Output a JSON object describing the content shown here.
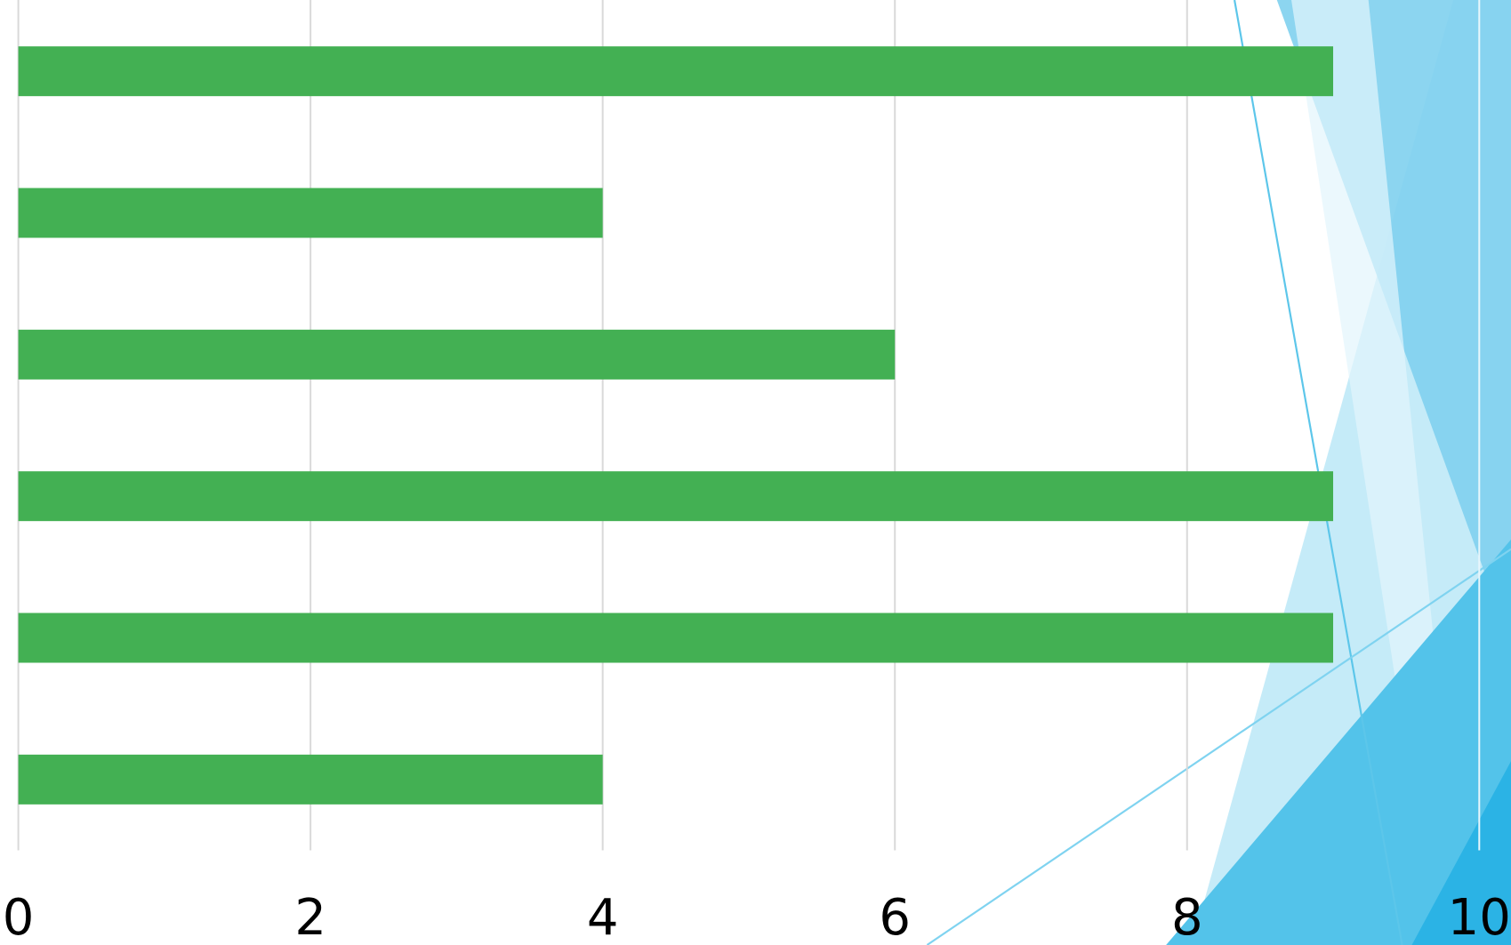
{
  "chart_data": {
    "type": "bar",
    "orientation": "horizontal",
    "categories": [
      null,
      null,
      null,
      null,
      null,
      null
    ],
    "values": [
      9,
      4,
      6,
      9,
      9,
      4
    ],
    "color": "#43b053",
    "xlim": [
      0,
      10
    ],
    "xticks": [
      0,
      2,
      4,
      6,
      8,
      10
    ],
    "grid": true
  }
}
